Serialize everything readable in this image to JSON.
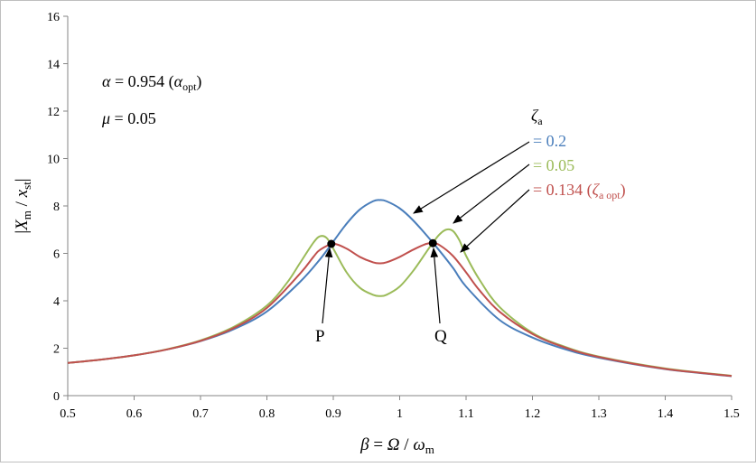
{
  "chart_data": {
    "type": "line",
    "xlim": [
      0.5,
      1.5
    ],
    "ylim": [
      0,
      16
    ],
    "x_ticks": [
      "0.5",
      "0.6",
      "0.7",
      "0.8",
      "0.9",
      "1",
      "1.1",
      "1.2",
      "1.3",
      "1.4",
      "1.5"
    ],
    "y_ticks": [
      "0",
      "2",
      "4",
      "6",
      "8",
      "10",
      "12",
      "14",
      "16"
    ],
    "x_label": {
      "beta": "β",
      "eq": " = ",
      "Omega": "Ω",
      "slash": " / ",
      "omega": "ω",
      "sub": "m"
    },
    "y_label": {
      "open": "|",
      "X": "X",
      "sub": "m",
      "slash": " / ",
      "x": "x",
      "sub2": "st",
      "close": "|"
    },
    "grid": false,
    "params": {
      "alpha": {
        "sym": "α",
        "text": " = 0.954 (",
        "sym2": "α",
        "sub": "opt",
        "close": ")"
      },
      "mu": {
        "sym": "μ",
        "text": " = 0.05"
      }
    },
    "legend": {
      "symbol": "ζ",
      "sub": "a",
      "entries": [
        {
          "text": "= 0.2",
          "color": "#4a7ebb"
        },
        {
          "text": "= 0.05",
          "color": "#9bbb59"
        },
        {
          "text": "= 0.134 (",
          "sym": "ζ",
          "sub": "a opt",
          "close": ")",
          "color": "#c0504d"
        }
      ]
    },
    "points": [
      {
        "label": "P",
        "x": 0.897,
        "y": 6.4
      },
      {
        "label": "Q",
        "x": 1.05,
        "y": 6.43
      }
    ],
    "series": [
      {
        "color": "#4a7ebb",
        "x": [
          0.5,
          0.55,
          0.6,
          0.65,
          0.7,
          0.75,
          0.8,
          0.85,
          0.88,
          0.9,
          0.92,
          0.94,
          0.96,
          0.97,
          0.98,
          1.0,
          1.02,
          1.05,
          1.08,
          1.1,
          1.15,
          1.2,
          1.25,
          1.3,
          1.4,
          1.5
        ],
        "y": [
          1.38,
          1.52,
          1.7,
          1.95,
          2.3,
          2.8,
          3.55,
          4.8,
          5.75,
          6.5,
          7.25,
          7.85,
          8.2,
          8.25,
          8.2,
          7.9,
          7.4,
          6.45,
          5.4,
          4.6,
          3.2,
          2.45,
          1.95,
          1.6,
          1.12,
          0.82
        ]
      },
      {
        "color": "#9bbb59",
        "x": [
          0.5,
          0.55,
          0.6,
          0.65,
          0.7,
          0.75,
          0.8,
          0.83,
          0.85,
          0.87,
          0.88,
          0.89,
          0.9,
          0.92,
          0.94,
          0.96,
          0.97,
          0.98,
          1.0,
          1.02,
          1.04,
          1.05,
          1.06,
          1.07,
          1.08,
          1.09,
          1.1,
          1.12,
          1.15,
          1.2,
          1.25,
          1.3,
          1.4,
          1.5
        ],
        "y": [
          1.38,
          1.52,
          1.7,
          1.96,
          2.33,
          2.9,
          3.8,
          4.75,
          5.6,
          6.45,
          6.72,
          6.65,
          6.2,
          5.2,
          4.55,
          4.25,
          4.2,
          4.25,
          4.6,
          5.25,
          6.05,
          6.45,
          6.8,
          7.0,
          6.95,
          6.55,
          5.9,
          4.9,
          3.75,
          2.65,
          2.05,
          1.65,
          1.15,
          0.84
        ]
      },
      {
        "color": "#c0504d",
        "x": [
          0.5,
          0.55,
          0.6,
          0.65,
          0.7,
          0.75,
          0.8,
          0.85,
          0.87,
          0.88,
          0.9,
          0.92,
          0.94,
          0.96,
          0.97,
          0.98,
          1.0,
          1.02,
          1.04,
          1.05,
          1.06,
          1.08,
          1.1,
          1.12,
          1.15,
          1.2,
          1.25,
          1.3,
          1.4,
          1.5
        ],
        "y": [
          1.38,
          1.52,
          1.7,
          1.95,
          2.31,
          2.85,
          3.7,
          5.15,
          5.85,
          6.15,
          6.4,
          6.2,
          5.85,
          5.62,
          5.58,
          5.62,
          5.85,
          6.15,
          6.4,
          6.43,
          6.35,
          5.9,
          5.2,
          4.45,
          3.55,
          2.6,
          2.02,
          1.63,
          1.13,
          0.83
        ]
      }
    ]
  }
}
